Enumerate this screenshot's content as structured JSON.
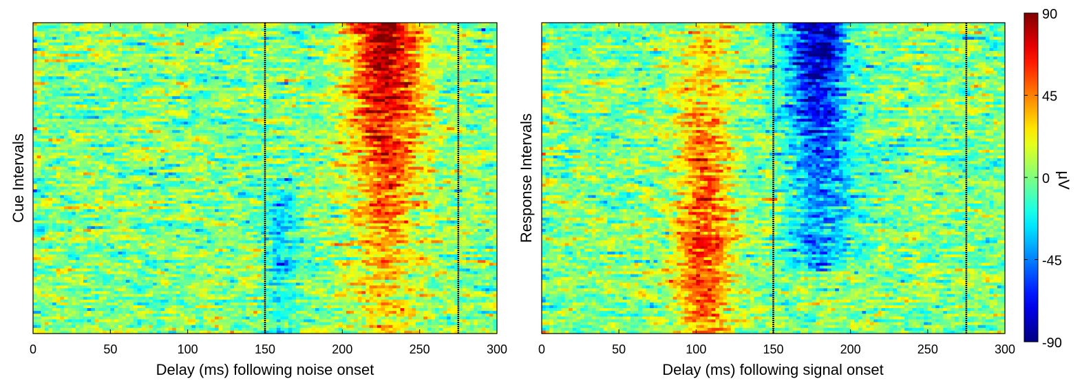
{
  "chart_data": [
    {
      "type": "heatmap",
      "title": "",
      "xlabel": "Delay (ms) following noise onset",
      "ylabel": "Cue Intervals",
      "xlim": [
        0,
        300
      ],
      "xticks": [
        0,
        50,
        100,
        150,
        200,
        250,
        300
      ],
      "yticks": [],
      "grid": false,
      "vlines_ms": [
        150,
        275
      ],
      "pattern": [
        {
          "center_ms": 228,
          "width_ms": 24,
          "amplitude_uV": 85,
          "row_start": 0,
          "row_end": 1,
          "row_peak": 0.05,
          "description": "positive"
        },
        {
          "center_ms": 160,
          "width_ms": 10,
          "amplitude_uV": -25,
          "row_start": 0.55,
          "row_end": 1,
          "row_peak": 0.7,
          "description": "negative"
        }
      ],
      "value_range_uV": [
        -90,
        90
      ],
      "noise_uV": 38,
      "rows": 110
    },
    {
      "type": "heatmap",
      "title": "",
      "xlabel": "Delay (ms) following signal onset",
      "ylabel": "Response Intervals",
      "xlim": [
        0,
        300
      ],
      "xticks": [
        0,
        50,
        100,
        150,
        200,
        250,
        300
      ],
      "yticks": [],
      "grid": false,
      "vlines_ms": [
        150,
        275
      ],
      "pattern": [
        {
          "center_ms": 105,
          "width_ms": 18,
          "amplitude_uV": 60,
          "row_start": 0,
          "row_end": 1,
          "row_peak": 0.7,
          "description": "positive"
        },
        {
          "center_ms": 180,
          "width_ms": 20,
          "amplitude_uV": -80,
          "row_start": 0,
          "row_end": 0.75,
          "row_peak": 0.05,
          "description": "negative"
        }
      ],
      "value_range_uV": [
        -90,
        90
      ],
      "noise_uV": 38,
      "rows": 110
    }
  ],
  "colorbar": {
    "label": "μV",
    "range": [
      -90,
      90
    ],
    "ticks": [
      90,
      45,
      0,
      -45,
      -90
    ],
    "colormap": "jet"
  }
}
